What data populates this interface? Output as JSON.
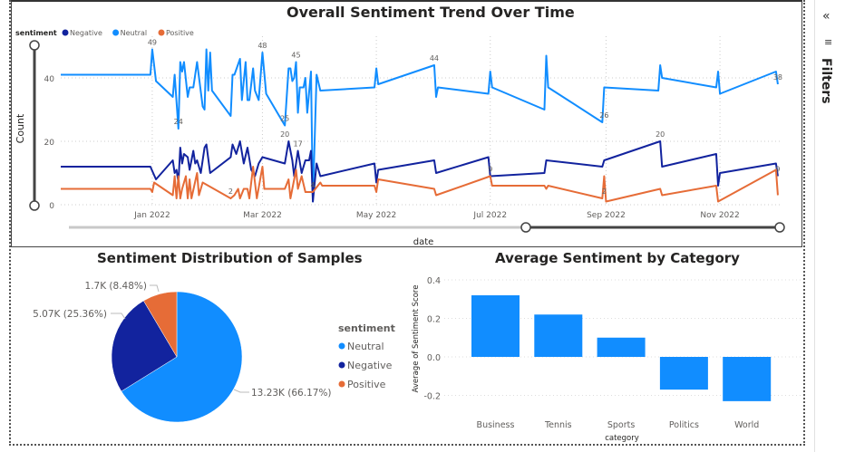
{
  "colors": {
    "neutral": "#118DFF",
    "negative": "#12239E",
    "positive": "#E66C37",
    "text": "#252423",
    "axis": "#605E5C"
  },
  "filters_pane": {
    "label": "Filters",
    "collapse_icon": "double-chevron-left-icon",
    "filter_icon": "filter-icon"
  },
  "chart_data": [
    {
      "type": "line",
      "title": "Overall Sentiment Trend Over Time",
      "xlabel": "date",
      "ylabel": "Count",
      "legend": {
        "title": "sentiment",
        "placement": "top-left",
        "entries": [
          "Negative",
          "Neutral",
          "Positive"
        ]
      },
      "xlim": [
        "2021-11-13",
        "2022-12-03"
      ],
      "ylim": [
        0,
        50
      ],
      "yticks": [
        0,
        20,
        40
      ],
      "xticks": [
        {
          "date": "2022-01-01",
          "label": "Jan 2022"
        },
        {
          "date": "2022-03-01",
          "label": "Mar 2022"
        },
        {
          "date": "2022-05-01",
          "label": "May 2022"
        },
        {
          "date": "2022-07-01",
          "label": "Jul 2022"
        },
        {
          "date": "2022-09-01",
          "label": "Sep 2022"
        },
        {
          "date": "2022-11-01",
          "label": "Nov 2022"
        }
      ],
      "grid": true,
      "series": [
        {
          "name": "Neutral",
          "points": [
            [
              "2021-11-13",
              41
            ],
            [
              "2021-12-31",
              41
            ],
            [
              "2022-01-01",
              49
            ],
            [
              "2022-01-03",
              39
            ],
            [
              "2022-01-12",
              34
            ],
            [
              "2022-01-13",
              41
            ],
            [
              "2022-01-15",
              24
            ],
            [
              "2022-01-16",
              45
            ],
            [
              "2022-01-17",
              42
            ],
            [
              "2022-01-18",
              45
            ],
            [
              "2022-01-20",
              34
            ],
            [
              "2022-01-21",
              37
            ],
            [
              "2022-01-23",
              37
            ],
            [
              "2022-01-25",
              45
            ],
            [
              "2022-01-28",
              31
            ],
            [
              "2022-01-29",
              30
            ],
            [
              "2022-01-30",
              49
            ],
            [
              "2022-01-31",
              36
            ],
            [
              "2022-02-01",
              48
            ],
            [
              "2022-02-02",
              36
            ],
            [
              "2022-02-12",
              28
            ],
            [
              "2022-02-13",
              41
            ],
            [
              "2022-02-14",
              41
            ],
            [
              "2022-02-17",
              46
            ],
            [
              "2022-02-18",
              33
            ],
            [
              "2022-02-20",
              45
            ],
            [
              "2022-02-21",
              33
            ],
            [
              "2022-02-22",
              33
            ],
            [
              "2022-02-24",
              43
            ],
            [
              "2022-02-25",
              36
            ],
            [
              "2022-02-27",
              33
            ],
            [
              "2022-03-01",
              48
            ],
            [
              "2022-03-03",
              35
            ],
            [
              "2022-03-13",
              25
            ],
            [
              "2022-03-15",
              43
            ],
            [
              "2022-03-16",
              43
            ],
            [
              "2022-03-17",
              39
            ],
            [
              "2022-03-18",
              40
            ],
            [
              "2022-03-19",
              45
            ],
            [
              "2022-03-20",
              29
            ],
            [
              "2022-03-21",
              37
            ],
            [
              "2022-03-23",
              37
            ],
            [
              "2022-03-24",
              40
            ],
            [
              "2022-03-25",
              29
            ],
            [
              "2022-03-27",
              42
            ],
            [
              "2022-03-28",
              1
            ],
            [
              "2022-03-30",
              41
            ],
            [
              "2022-04-01",
              36
            ],
            [
              "2022-04-30",
              37
            ],
            [
              "2022-05-01",
              43
            ],
            [
              "2022-05-02",
              38
            ],
            [
              "2022-06-01",
              44
            ],
            [
              "2022-06-02",
              34
            ],
            [
              "2022-06-03",
              37
            ],
            [
              "2022-06-30",
              35
            ],
            [
              "2022-07-01",
              42
            ],
            [
              "2022-07-02",
              37
            ],
            [
              "2022-07-30",
              30
            ],
            [
              "2022-07-31",
              47
            ],
            [
              "2022-08-01",
              37
            ],
            [
              "2022-08-30",
              26
            ],
            [
              "2022-08-31",
              37
            ],
            [
              "2022-09-29",
              36
            ],
            [
              "2022-09-30",
              44
            ],
            [
              "2022-10-01",
              40
            ],
            [
              "2022-10-30",
              37
            ],
            [
              "2022-10-31",
              42
            ],
            [
              "2022-11-01",
              35
            ],
            [
              "2022-12-01",
              42
            ],
            [
              "2022-12-02",
              38
            ]
          ]
        },
        {
          "name": "Negative",
          "points": [
            [
              "2021-11-13",
              12
            ],
            [
              "2021-12-31",
              12
            ],
            [
              "2022-01-03",
              8
            ],
            [
              "2022-01-12",
              14
            ],
            [
              "2022-01-13",
              10
            ],
            [
              "2022-01-14",
              11
            ],
            [
              "2022-01-15",
              7
            ],
            [
              "2022-01-16",
              18
            ],
            [
              "2022-01-17",
              13
            ],
            [
              "2022-01-18",
              16
            ],
            [
              "2022-01-20",
              15
            ],
            [
              "2022-01-21",
              11
            ],
            [
              "2022-01-23",
              17
            ],
            [
              "2022-01-24",
              13
            ],
            [
              "2022-01-25",
              14
            ],
            [
              "2022-01-27",
              10
            ],
            [
              "2022-01-29",
              18
            ],
            [
              "2022-01-30",
              19
            ],
            [
              "2022-02-01",
              10
            ],
            [
              "2022-02-12",
              15
            ],
            [
              "2022-02-13",
              19
            ],
            [
              "2022-02-15",
              16
            ],
            [
              "2022-02-17",
              20
            ],
            [
              "2022-02-19",
              13
            ],
            [
              "2022-02-21",
              18
            ],
            [
              "2022-02-23",
              11
            ],
            [
              "2022-02-25",
              9
            ],
            [
              "2022-02-27",
              13
            ],
            [
              "2022-03-01",
              15
            ],
            [
              "2022-03-13",
              13
            ],
            [
              "2022-03-15",
              20
            ],
            [
              "2022-03-17",
              14
            ],
            [
              "2022-03-18",
              9
            ],
            [
              "2022-03-20",
              17
            ],
            [
              "2022-03-22",
              10
            ],
            [
              "2022-03-24",
              14
            ],
            [
              "2022-03-26",
              14
            ],
            [
              "2022-03-27",
              17
            ],
            [
              "2022-03-28",
              1
            ],
            [
              "2022-03-30",
              13
            ],
            [
              "2022-04-01",
              9
            ],
            [
              "2022-04-30",
              13
            ],
            [
              "2022-05-01",
              7
            ],
            [
              "2022-05-02",
              11
            ],
            [
              "2022-06-01",
              14
            ],
            [
              "2022-06-02",
              10
            ],
            [
              "2022-06-30",
              15
            ],
            [
              "2022-07-01",
              9
            ],
            [
              "2022-07-30",
              10
            ],
            [
              "2022-07-31",
              14
            ],
            [
              "2022-08-30",
              12
            ],
            [
              "2022-08-31",
              14
            ],
            [
              "2022-09-30",
              20
            ],
            [
              "2022-10-01",
              12
            ],
            [
              "2022-10-30",
              16
            ],
            [
              "2022-10-31",
              6
            ],
            [
              "2022-11-01",
              10
            ],
            [
              "2022-12-01",
              13
            ],
            [
              "2022-12-02",
              9
            ]
          ]
        },
        {
          "name": "Positive",
          "points": [
            [
              "2021-11-13",
              5
            ],
            [
              "2021-12-31",
              5
            ],
            [
              "2022-01-01",
              4
            ],
            [
              "2022-01-02",
              7
            ],
            [
              "2022-01-12",
              3
            ],
            [
              "2022-01-13",
              9
            ],
            [
              "2022-01-14",
              2
            ],
            [
              "2022-01-15",
              9
            ],
            [
              "2022-01-16",
              2
            ],
            [
              "2022-01-17",
              5
            ],
            [
              "2022-01-19",
              9
            ],
            [
              "2022-01-20",
              2
            ],
            [
              "2022-01-21",
              8
            ],
            [
              "2022-01-22",
              2
            ],
            [
              "2022-01-25",
              10
            ],
            [
              "2022-01-26",
              3
            ],
            [
              "2022-01-28",
              7
            ],
            [
              "2022-02-12",
              2
            ],
            [
              "2022-02-14",
              3
            ],
            [
              "2022-02-16",
              5
            ],
            [
              "2022-02-17",
              2
            ],
            [
              "2022-02-19",
              5
            ],
            [
              "2022-02-21",
              5
            ],
            [
              "2022-02-22",
              2
            ],
            [
              "2022-02-24",
              12
            ],
            [
              "2022-02-26",
              2
            ],
            [
              "2022-03-01",
              12
            ],
            [
              "2022-03-02",
              5
            ],
            [
              "2022-03-13",
              5
            ],
            [
              "2022-03-15",
              8
            ],
            [
              "2022-03-16",
              2
            ],
            [
              "2022-03-19",
              11
            ],
            [
              "2022-03-20",
              5
            ],
            [
              "2022-03-22",
              9
            ],
            [
              "2022-03-24",
              4
            ],
            [
              "2022-03-28",
              4
            ],
            [
              "2022-04-01",
              7
            ],
            [
              "2022-04-02",
              6
            ],
            [
              "2022-04-30",
              6
            ],
            [
              "2022-05-01",
              4
            ],
            [
              "2022-05-02",
              8
            ],
            [
              "2022-06-01",
              5
            ],
            [
              "2022-06-02",
              3
            ],
            [
              "2022-07-01",
              9
            ],
            [
              "2022-07-02",
              6
            ],
            [
              "2022-07-30",
              6
            ],
            [
              "2022-07-31",
              5
            ],
            [
              "2022-08-01",
              6
            ],
            [
              "2022-08-30",
              2
            ],
            [
              "2022-08-31",
              9
            ],
            [
              "2022-09-01",
              1
            ],
            [
              "2022-09-30",
              5
            ],
            [
              "2022-10-01",
              3
            ],
            [
              "2022-10-30",
              6
            ],
            [
              "2022-10-31",
              1
            ],
            [
              "2022-12-01",
              11
            ],
            [
              "2022-12-02",
              3
            ]
          ]
        }
      ],
      "data_labels": [
        [
          "2022-01-01",
          49,
          "49"
        ],
        [
          "2022-01-15",
          24,
          "24"
        ],
        [
          "2022-03-01",
          48,
          "48"
        ],
        [
          "2022-03-13",
          25,
          "25"
        ],
        [
          "2022-03-19",
          45,
          "45"
        ],
        [
          "2022-03-13",
          20,
          "20"
        ],
        [
          "2022-03-20",
          17,
          "17"
        ],
        [
          "2022-06-01",
          44,
          "44"
        ],
        [
          "2022-08-31",
          26,
          "26"
        ],
        [
          "2022-09-30",
          20,
          "20"
        ],
        [
          "2022-12-02",
          38,
          "38"
        ],
        [
          "2022-07-01",
          9,
          "9"
        ],
        [
          "2022-12-02",
          9,
          "9"
        ],
        [
          "2022-08-31",
          2,
          "2"
        ],
        [
          "2022-03-28",
          4,
          "4"
        ],
        [
          "2022-02-12",
          2,
          "2"
        ]
      ]
    },
    {
      "type": "pie",
      "title": "Sentiment Distribution of Samples",
      "legend": {
        "title": "sentiment",
        "placement": "right",
        "entries": [
          "Neutral",
          "Negative",
          "Positive"
        ]
      },
      "slices": [
        {
          "name": "Neutral",
          "value": 13230,
          "percent": 66.17,
          "label": "13.23K (66.17%)"
        },
        {
          "name": "Negative",
          "value": 5070,
          "percent": 25.36,
          "label": "5.07K (25.36%)"
        },
        {
          "name": "Positive",
          "value": 1700,
          "percent": 8.48,
          "label": "1.7K (8.48%)"
        }
      ]
    },
    {
      "type": "bar",
      "title": "Average Sentiment by Category",
      "xlabel": "category",
      "ylabel": "Average of Sentiment Score",
      "categories": [
        "Business",
        "Tennis",
        "Sports",
        "Politics",
        "World"
      ],
      "values": [
        0.32,
        0.22,
        0.1,
        -0.17,
        -0.23
      ],
      "ylim": [
        -0.25,
        0.4
      ],
      "yticks": [
        "-0.2",
        "0.0",
        "0.2",
        "0.4"
      ],
      "grid": true
    }
  ]
}
